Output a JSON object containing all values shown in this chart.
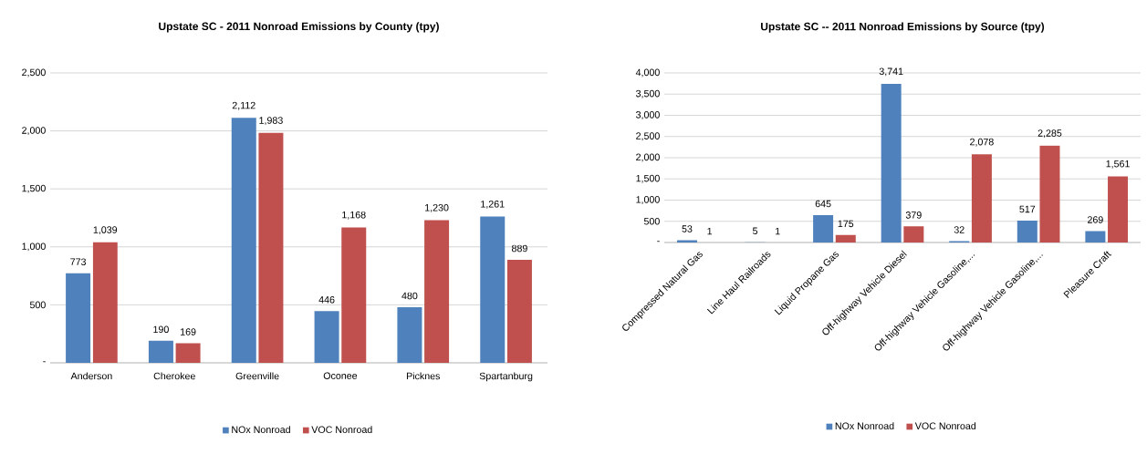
{
  "chart_data": [
    {
      "type": "bar",
      "title": "Upstate SC - 2011  Nonroad Emissions by County (tpy)",
      "categories": [
        "Anderson",
        "Cherokee",
        "Greenville",
        "Oconee",
        "Picknes",
        "Spartanburg"
      ],
      "series": [
        {
          "name": "NOx Nonroad",
          "color": "#4f81bd",
          "values": [
            773,
            190,
            2112,
            446,
            480,
            1261
          ],
          "value_labels": [
            "773",
            "190",
            "2,112",
            "446",
            "480",
            "1,261"
          ]
        },
        {
          "name": "VOC Nonroad",
          "color": "#c0504d",
          "values": [
            1039,
            169,
            1983,
            1168,
            1230,
            889
          ],
          "value_labels": [
            "1,039",
            "169",
            "1,983",
            "1,168",
            "1,230",
            "889"
          ]
        }
      ],
      "ylim": [
        0,
        2500
      ],
      "yticks": [
        {
          "value": 0,
          "label": "-"
        },
        {
          "value": 500,
          "label": "500"
        },
        {
          "value": 1000,
          "label": "1,000"
        },
        {
          "value": 1500,
          "label": "1,500"
        },
        {
          "value": 2000,
          "label": "2,000"
        },
        {
          "value": 2500,
          "label": "2,500"
        }
      ],
      "grid": "y",
      "legend": "bottom"
    },
    {
      "type": "bar",
      "title": "Upstate SC -- 2011  Nonroad Emissions by Source (tpy)",
      "categories": [
        "Compressed Natural Gas",
        "Line Haul Railroads",
        "Liquid Propane Gas",
        "Off-highway Vehicle Diesel",
        "Off-highway Vehicle Gasoline,...",
        "Off-highway Vehicle Gasoline,...",
        "Pleasure Craft"
      ],
      "series": [
        {
          "name": "NOx Nonroad",
          "color": "#4f81bd",
          "values": [
            53,
            5,
            645,
            3741,
            32,
            517,
            269
          ],
          "value_labels": [
            "53",
            "5",
            "645",
            "3,741",
            "32",
            "517",
            "269"
          ]
        },
        {
          "name": "VOC Nonroad",
          "color": "#c0504d",
          "values": [
            1,
            1,
            175,
            379,
            2078,
            2285,
            1561
          ],
          "value_labels": [
            "1",
            "1",
            "175",
            "379",
            "2,078",
            "2,285",
            "1,561"
          ]
        }
      ],
      "ylim": [
        0,
        4000
      ],
      "yticks": [
        {
          "value": 0,
          "label": "-"
        },
        {
          "value": 500,
          "label": "500"
        },
        {
          "value": 1000,
          "label": "1,000"
        },
        {
          "value": 1500,
          "label": "1,500"
        },
        {
          "value": 2000,
          "label": "2,000"
        },
        {
          "value": 2500,
          "label": "2,500"
        },
        {
          "value": 3000,
          "label": "3,000"
        },
        {
          "value": 3500,
          "label": "3,500"
        },
        {
          "value": 4000,
          "label": "4,000"
        }
      ],
      "grid": "y",
      "legend": "bottom"
    }
  ]
}
